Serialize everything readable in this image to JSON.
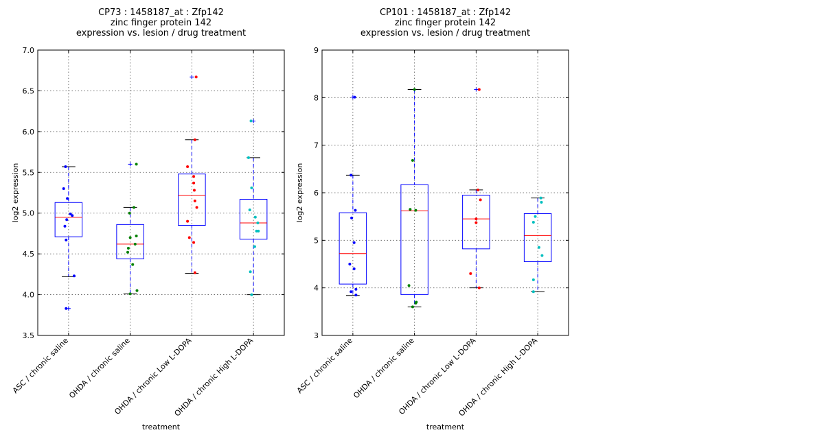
{
  "chart_data": [
    {
      "type": "box",
      "title_lines": [
        "CP73 : 1458187_at : Zfp142",
        "zinc finger protein 142",
        "expression vs. lesion / drug treatment"
      ],
      "xlabel": "treatment",
      "ylabel": "log2 expression",
      "ylim": [
        3.5,
        7.0
      ],
      "yticks": [
        3.5,
        4.0,
        4.5,
        5.0,
        5.5,
        6.0,
        6.5,
        7.0
      ],
      "ytick_labels": [
        "3.5",
        "4.0",
        "4.5",
        "5.0",
        "5.5",
        "6.0",
        "6.5",
        "7.0"
      ],
      "grid": true,
      "categories": [
        "ASC / chronic saline",
        "OHDA / chronic saline",
        "OHDA / chronic Low L-DOPA",
        "OHDA / chronic High L-DOPA"
      ],
      "colors": [
        "#0000ff",
        "#008000",
        "#ff0000",
        "#00bfbf"
      ],
      "boxes": [
        {
          "whislo": 4.22,
          "q1": 4.71,
          "med": 4.95,
          "q3": 5.13,
          "whishi": 5.57,
          "fliers": [
            3.83
          ],
          "points": [
            [
              -0.05,
              5.57
            ],
            [
              -0.08,
              5.3
            ],
            [
              -0.02,
              5.18
            ],
            [
              0.03,
              4.99
            ],
            [
              0.06,
              4.97
            ],
            [
              -0.03,
              4.92
            ],
            [
              -0.06,
              4.84
            ],
            [
              -0.04,
              4.67
            ],
            [
              0.09,
              4.23
            ],
            [
              -0.04,
              3.83
            ]
          ]
        },
        {
          "whislo": 4.01,
          "q1": 4.44,
          "med": 4.62,
          "q3": 4.86,
          "whishi": 5.07,
          "fliers": [
            5.6
          ],
          "points": [
            [
              0.1,
              5.6
            ],
            [
              0.06,
              5.07
            ],
            [
              -0.01,
              5.0
            ],
            [
              0.0,
              4.7
            ],
            [
              0.1,
              4.72
            ],
            [
              0.08,
              4.62
            ],
            [
              -0.03,
              4.57
            ],
            [
              -0.04,
              4.52
            ],
            [
              0.04,
              4.37
            ],
            [
              0.11,
              4.05
            ],
            [
              0.0,
              4.01
            ]
          ]
        },
        {
          "whislo": 4.26,
          "q1": 4.85,
          "med": 5.22,
          "q3": 5.48,
          "whishi": 5.9,
          "fliers": [
            6.67
          ],
          "points": [
            [
              0.07,
              6.67
            ],
            [
              0.05,
              5.9
            ],
            [
              -0.07,
              5.57
            ],
            [
              0.03,
              5.45
            ],
            [
              0.03,
              5.37
            ],
            [
              0.04,
              5.28
            ],
            [
              0.05,
              5.15
            ],
            [
              0.08,
              5.07
            ],
            [
              -0.07,
              4.9
            ],
            [
              -0.04,
              4.7
            ],
            [
              0.03,
              4.64
            ],
            [
              0.05,
              4.27
            ]
          ]
        },
        {
          "whislo": 4.0,
          "q1": 4.68,
          "med": 4.88,
          "q3": 5.17,
          "whishi": 5.68,
          "fliers": [
            6.13
          ],
          "points": [
            [
              -0.04,
              6.13
            ],
            [
              -0.08,
              5.68
            ],
            [
              -0.03,
              5.31
            ],
            [
              -0.06,
              5.04
            ],
            [
              0.03,
              4.95
            ],
            [
              0.07,
              4.88
            ],
            [
              0.05,
              4.78
            ],
            [
              0.08,
              4.78
            ],
            [
              0.02,
              4.59
            ],
            [
              -0.05,
              4.28
            ],
            [
              -0.03,
              4.0
            ]
          ]
        }
      ]
    },
    {
      "type": "box",
      "title_lines": [
        "CP101 : 1458187_at : Zfp142",
        "zinc finger protein 142",
        "expression vs. lesion / drug treatment"
      ],
      "xlabel": "treatment",
      "ylabel": "log2 expression",
      "ylim": [
        3,
        9
      ],
      "yticks": [
        3,
        4,
        5,
        6,
        7,
        8,
        9
      ],
      "ytick_labels": [
        "3",
        "4",
        "5",
        "6",
        "7",
        "8",
        "9"
      ],
      "grid": true,
      "categories": [
        "ASC / chronic saline",
        "OHDA / chronic saline",
        "OHDA / chronic Low L-DOPA",
        "OHDA / chronic High L-DOPA"
      ],
      "colors": [
        "#0000ff",
        "#008000",
        "#ff0000",
        "#00bfbf"
      ],
      "boxes": [
        {
          "whislo": 3.84,
          "q1": 4.08,
          "med": 4.72,
          "q3": 5.58,
          "whishi": 6.37,
          "fliers": [
            8.01
          ],
          "points": [
            [
              0.03,
              8.01
            ],
            [
              -0.03,
              6.37
            ],
            [
              0.04,
              5.63
            ],
            [
              -0.02,
              5.47
            ],
            [
              0.02,
              4.95
            ],
            [
              -0.05,
              4.5
            ],
            [
              0.02,
              4.4
            ],
            [
              0.05,
              3.97
            ],
            [
              -0.03,
              3.92
            ],
            [
              0.05,
              3.85
            ]
          ]
        },
        {
          "whislo": 3.6,
          "q1": 3.86,
          "med": 5.62,
          "q3": 6.17,
          "whishi": 8.17,
          "fliers": [],
          "points": [
            [
              0.0,
              8.17
            ],
            [
              -0.03,
              6.68
            ],
            [
              -0.07,
              5.65
            ],
            [
              0.02,
              5.63
            ],
            [
              -0.09,
              4.05
            ],
            [
              0.03,
              3.7
            ],
            [
              0.02,
              3.68
            ],
            [
              -0.03,
              3.6
            ]
          ]
        },
        {
          "whislo": 4.0,
          "q1": 4.82,
          "med": 5.45,
          "q3": 5.95,
          "whishi": 6.06,
          "fliers": [
            8.17
          ],
          "points": [
            [
              0.05,
              8.17
            ],
            [
              0.03,
              6.06
            ],
            [
              0.07,
              5.85
            ],
            [
              0.0,
              5.45
            ],
            [
              0.0,
              5.37
            ],
            [
              -0.09,
              4.3
            ],
            [
              0.05,
              4.0
            ]
          ]
        },
        {
          "whislo": 3.92,
          "q1": 4.55,
          "med": 5.1,
          "q3": 5.56,
          "whishi": 5.89,
          "fliers": [],
          "points": [
            [
              0.05,
              5.89
            ],
            [
              0.06,
              5.8
            ],
            [
              -0.04,
              5.5
            ],
            [
              -0.07,
              5.38
            ],
            [
              0.02,
              4.85
            ],
            [
              0.07,
              4.68
            ],
            [
              -0.07,
              4.17
            ],
            [
              -0.07,
              3.92
            ]
          ]
        }
      ]
    }
  ]
}
